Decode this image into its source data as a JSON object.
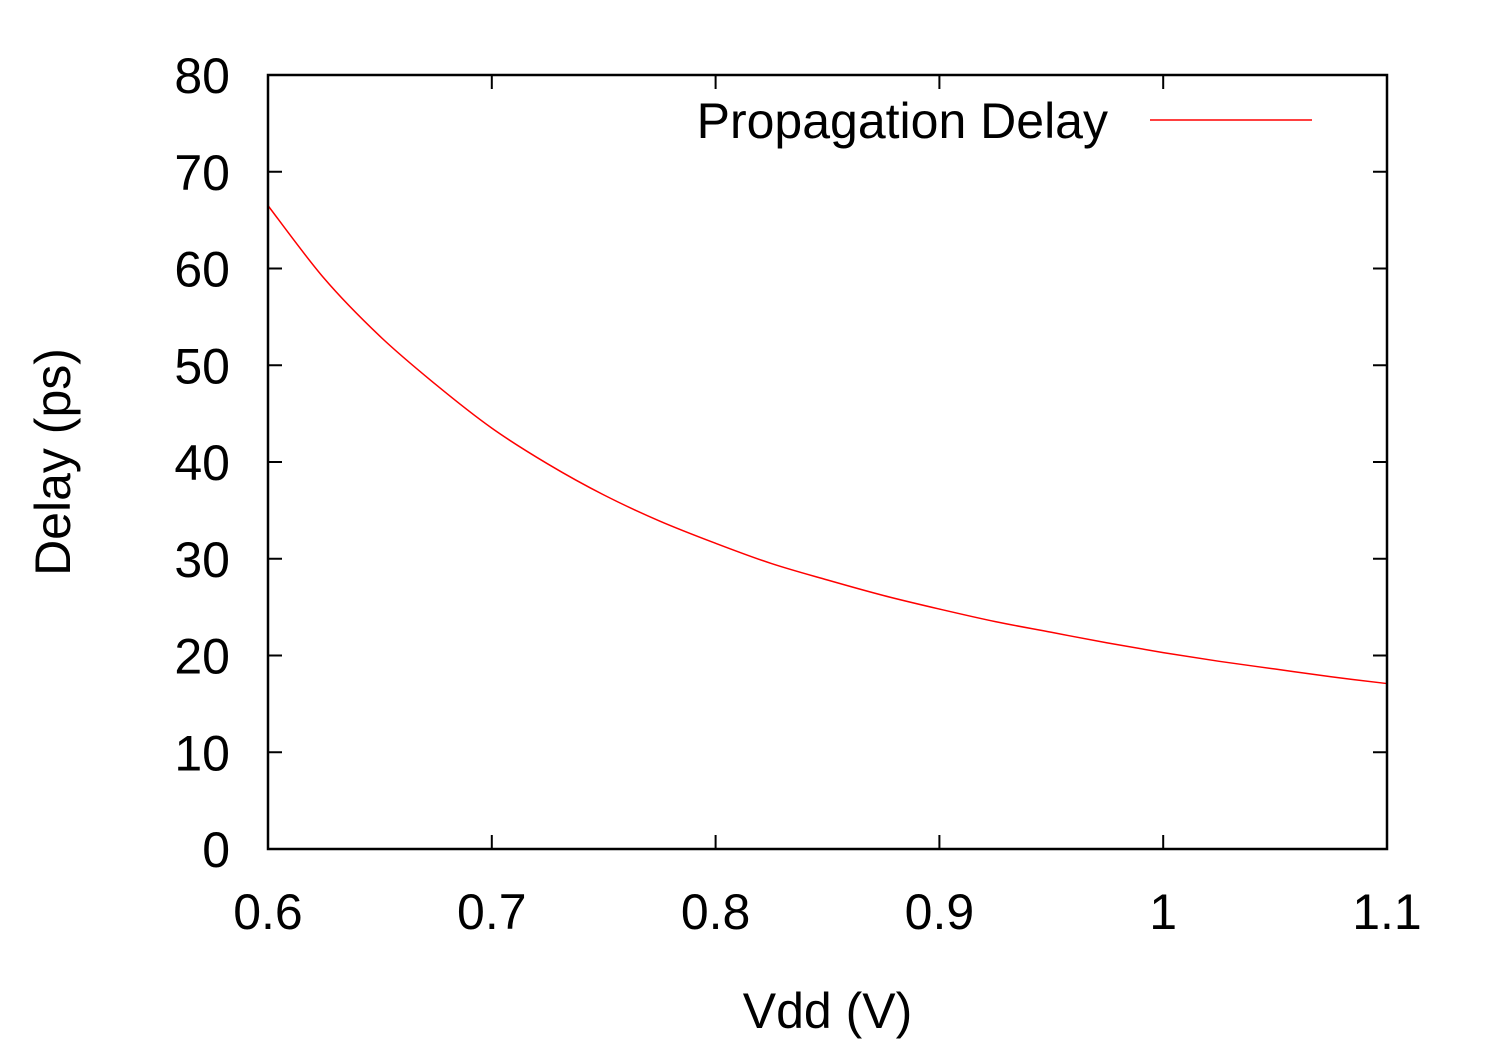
{
  "chart_data": {
    "type": "line",
    "title": "",
    "xlabel": "Vdd (V)",
    "ylabel": "Delay (ps)",
    "xlim": [
      0.6,
      1.1
    ],
    "ylim": [
      0,
      80
    ],
    "x_ticks": [
      "0.6",
      "0.7",
      "0.8",
      "0.9",
      "1",
      "1.1"
    ],
    "y_ticks": [
      "0",
      "10",
      "20",
      "30",
      "40",
      "50",
      "60",
      "70",
      "80"
    ],
    "grid": false,
    "legend_position": "top-right",
    "series": [
      {
        "name": "Propagation Delay",
        "color": "#ff0000",
        "x": [
          0.6,
          0.625,
          0.65,
          0.675,
          0.7,
          0.725,
          0.75,
          0.775,
          0.8,
          0.825,
          0.85,
          0.875,
          0.9,
          0.925,
          0.95,
          0.975,
          1.0,
          1.025,
          1.05,
          1.075,
          1.1
        ],
        "y": [
          66.5,
          59.0,
          53.0,
          48.0,
          43.5,
          39.8,
          36.6,
          33.9,
          31.6,
          29.5,
          27.8,
          26.2,
          24.8,
          23.5,
          22.4,
          21.3,
          20.3,
          19.4,
          18.6,
          17.8,
          17.1
        ]
      }
    ]
  }
}
